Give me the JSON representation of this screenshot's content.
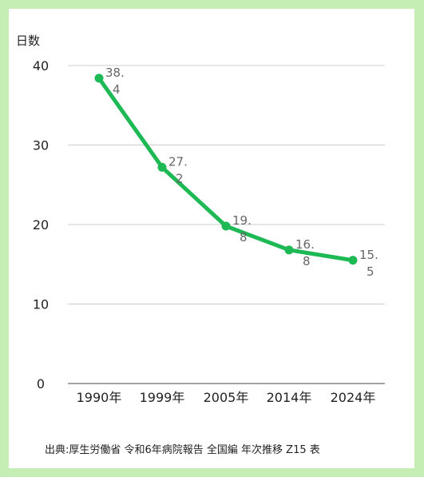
{
  "colors": {
    "background": "#c5eeb5",
    "line": "#1db954",
    "grid": "#cccccc"
  },
  "chart_data": {
    "type": "line",
    "ylabel": "日数",
    "categories": [
      "1990年",
      "1999年",
      "2005年",
      "2014年",
      "2024年"
    ],
    "series": [
      {
        "values": [
          38.4,
          27.2,
          19.8,
          16.8,
          15.5
        ]
      }
    ],
    "data_labels": [
      [
        "38.",
        "4"
      ],
      [
        "27.",
        "2"
      ],
      [
        "19.",
        "8"
      ],
      [
        "16.",
        "8"
      ],
      [
        "15.",
        "5"
      ]
    ],
    "yticks": [
      0,
      10,
      20,
      30,
      40
    ],
    "ylim": [
      0,
      40
    ],
    "grid": true,
    "legend": "none"
  },
  "source": "出典:厚生労働省 令和6年病院報告 全国編 年次推移 Z15 表"
}
